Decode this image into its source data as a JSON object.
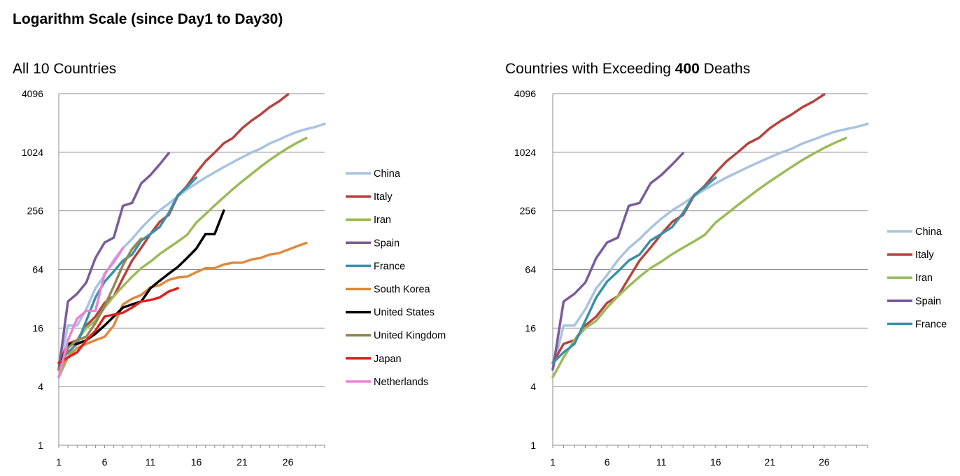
{
  "page": {
    "title": "Logarithm Scale (since Day1 to Day30)"
  },
  "chart_data": [
    {
      "type": "line",
      "title": "All 10 Countries",
      "y_scale": "log2",
      "ylim": [
        1,
        4096
      ],
      "yticks": [
        1,
        4,
        16,
        64,
        256,
        1024,
        4096
      ],
      "xlim": [
        1,
        30
      ],
      "xticks": [
        1,
        6,
        11,
        16,
        21,
        26
      ],
      "legend_position": "right",
      "series": [
        {
          "name": "China",
          "color": "#a9c3e0",
          "x": [
            1,
            2,
            3,
            4,
            5,
            6,
            7,
            8,
            9,
            10,
            11,
            12,
            13,
            14,
            15,
            16,
            17,
            18,
            19,
            20,
            21,
            22,
            23,
            24,
            25,
            26,
            27,
            28,
            29,
            30
          ],
          "values": [
            6,
            17,
            17,
            25,
            41,
            56,
            80,
            106,
            132,
            170,
            213,
            259,
            304,
            361,
            425,
            490,
            563,
            637,
            722,
            811,
            908,
            1016,
            1113,
            1259,
            1380,
            1523,
            1665,
            1770,
            1868,
            2004
          ]
        },
        {
          "name": "Italy",
          "color": "#b5443f",
          "x": [
            1,
            2,
            3,
            4,
            5,
            6,
            7,
            8,
            9,
            10,
            11,
            12,
            13,
            14,
            15,
            16,
            17,
            18,
            19,
            20,
            21,
            22,
            23,
            24,
            25,
            26
          ],
          "values": [
            7,
            11,
            12,
            17,
            21,
            29,
            34,
            52,
            79,
            107,
            148,
            197,
            233,
            366,
            463,
            631,
            827,
            1016,
            1266,
            1441,
            1809,
            2158,
            2503,
            2978,
            3405,
            4032
          ]
        },
        {
          "name": "Iran",
          "color": "#9bbb59",
          "x": [
            1,
            2,
            3,
            4,
            5,
            6,
            7,
            8,
            9,
            10,
            11,
            12,
            13,
            14,
            15,
            16,
            17,
            18,
            19,
            20,
            21,
            22,
            23,
            24,
            25,
            26,
            27,
            28
          ],
          "values": [
            5,
            8,
            12,
            16,
            19,
            26,
            34,
            43,
            54,
            66,
            77,
            92,
            107,
            124,
            145,
            194,
            237,
            291,
            354,
            429,
            514,
            611,
            724,
            853,
            988,
            1135,
            1284,
            1433
          ]
        },
        {
          "name": "Spain",
          "color": "#7b5b9c",
          "x": [
            1,
            2,
            3,
            4,
            5,
            6,
            7,
            8,
            9,
            10,
            11,
            12,
            13
          ],
          "values": [
            6,
            30,
            36,
            47,
            84,
            121,
            136,
            288,
            309,
            491,
            598,
            767,
            1002
          ]
        },
        {
          "name": "France",
          "color": "#3a91a7",
          "x": [
            1,
            2,
            3,
            4,
            5,
            6,
            7,
            8,
            9,
            10,
            11,
            12,
            13,
            14,
            15,
            16
          ],
          "values": [
            7,
            9,
            11,
            19,
            33,
            48,
            61,
            79,
            91,
            127,
            148,
            175,
            244,
            372,
            450,
            562
          ]
        },
        {
          "name": "South Korea",
          "color": "#de8a3e",
          "x": [
            1,
            2,
            3,
            4,
            5,
            6,
            7,
            8,
            9,
            10,
            11,
            12,
            13,
            14,
            15,
            16,
            17,
            18,
            19,
            20,
            21,
            22,
            23,
            24,
            25,
            26,
            27,
            28
          ],
          "values": [
            6,
            8,
            10,
            11,
            12,
            13,
            17,
            28,
            32,
            35,
            42,
            44,
            50,
            53,
            54,
            60,
            66,
            66,
            72,
            75,
            75,
            81,
            84,
            91,
            94,
            102,
            111,
            120
          ]
        },
        {
          "name": "United States",
          "color": "#000000",
          "x": [
            1,
            2,
            3,
            4,
            5,
            6,
            7,
            8,
            9,
            10,
            11,
            12,
            13,
            14,
            15,
            16,
            17,
            18,
            19
          ],
          "values": [
            6,
            11,
            11,
            12,
            14,
            17,
            21,
            26,
            28,
            30,
            41,
            49,
            58,
            68,
            84,
            105,
            148,
            148,
            258
          ]
        },
        {
          "name": "United Kingdom",
          "color": "#938953",
          "x": [
            1,
            2,
            3,
            4,
            5,
            6,
            7,
            8,
            9,
            10
          ],
          "values": [
            6,
            10,
            12,
            13,
            18,
            27,
            43,
            71,
            104,
            133
          ]
        },
        {
          "name": "Japan",
          "color": "#e02020",
          "x": [
            1,
            2,
            3,
            4,
            5,
            6,
            7,
            8,
            9,
            10,
            11,
            12,
            13,
            14
          ],
          "values": [
            7,
            8,
            9,
            12,
            15,
            21,
            22,
            23,
            26,
            30,
            31,
            33,
            38,
            41
          ]
        },
        {
          "name": "Netherlands",
          "color": "#ec82d8",
          "x": [
            1,
            2,
            3,
            4,
            5,
            6,
            7,
            8
          ],
          "values": [
            5,
            12,
            20,
            24,
            24,
            58,
            76,
            106
          ]
        }
      ]
    },
    {
      "type": "line",
      "title_prefix": "Countries with Exceeding ",
      "title_bold": "400",
      "title_suffix": " Deaths",
      "y_scale": "log2",
      "ylim": [
        1,
        4096
      ],
      "yticks": [
        1,
        4,
        16,
        64,
        256,
        1024,
        4096
      ],
      "xlim": [
        1,
        30
      ],
      "xticks": [
        1,
        6,
        11,
        16,
        21,
        26
      ],
      "legend_position": "right",
      "series": [
        {
          "name": "China",
          "color": "#a9c3e0",
          "x": [
            1,
            2,
            3,
            4,
            5,
            6,
            7,
            8,
            9,
            10,
            11,
            12,
            13,
            14,
            15,
            16,
            17,
            18,
            19,
            20,
            21,
            22,
            23,
            24,
            25,
            26,
            27,
            28,
            29,
            30
          ],
          "values": [
            6,
            17,
            17,
            25,
            41,
            56,
            80,
            106,
            132,
            170,
            213,
            259,
            304,
            361,
            425,
            490,
            563,
            637,
            722,
            811,
            908,
            1016,
            1113,
            1259,
            1380,
            1523,
            1665,
            1770,
            1868,
            2004
          ]
        },
        {
          "name": "Italy",
          "color": "#b5443f",
          "x": [
            1,
            2,
            3,
            4,
            5,
            6,
            7,
            8,
            9,
            10,
            11,
            12,
            13,
            14,
            15,
            16,
            17,
            18,
            19,
            20,
            21,
            22,
            23,
            24,
            25,
            26
          ],
          "values": [
            7,
            11,
            12,
            17,
            21,
            29,
            34,
            52,
            79,
            107,
            148,
            197,
            233,
            366,
            463,
            631,
            827,
            1016,
            1266,
            1441,
            1809,
            2158,
            2503,
            2978,
            3405,
            4032
          ]
        },
        {
          "name": "Iran",
          "color": "#9bbb59",
          "x": [
            1,
            2,
            3,
            4,
            5,
            6,
            7,
            8,
            9,
            10,
            11,
            12,
            13,
            14,
            15,
            16,
            17,
            18,
            19,
            20,
            21,
            22,
            23,
            24,
            25,
            26,
            27,
            28
          ],
          "values": [
            5,
            8,
            12,
            16,
            19,
            26,
            34,
            43,
            54,
            66,
            77,
            92,
            107,
            124,
            145,
            194,
            237,
            291,
            354,
            429,
            514,
            611,
            724,
            853,
            988,
            1135,
            1284,
            1433
          ]
        },
        {
          "name": "Spain",
          "color": "#7b5b9c",
          "x": [
            1,
            2,
            3,
            4,
            5,
            6,
            7,
            8,
            9,
            10,
            11,
            12,
            13
          ],
          "values": [
            6,
            30,
            36,
            47,
            84,
            121,
            136,
            288,
            309,
            491,
            598,
            767,
            1002
          ]
        },
        {
          "name": "France",
          "color": "#3a91a7",
          "x": [
            1,
            2,
            3,
            4,
            5,
            6,
            7,
            8,
            9,
            10,
            11,
            12,
            13,
            14,
            15,
            16
          ],
          "values": [
            7,
            9,
            11,
            19,
            33,
            48,
            61,
            79,
            91,
            127,
            148,
            175,
            244,
            372,
            450,
            562
          ]
        }
      ]
    }
  ]
}
